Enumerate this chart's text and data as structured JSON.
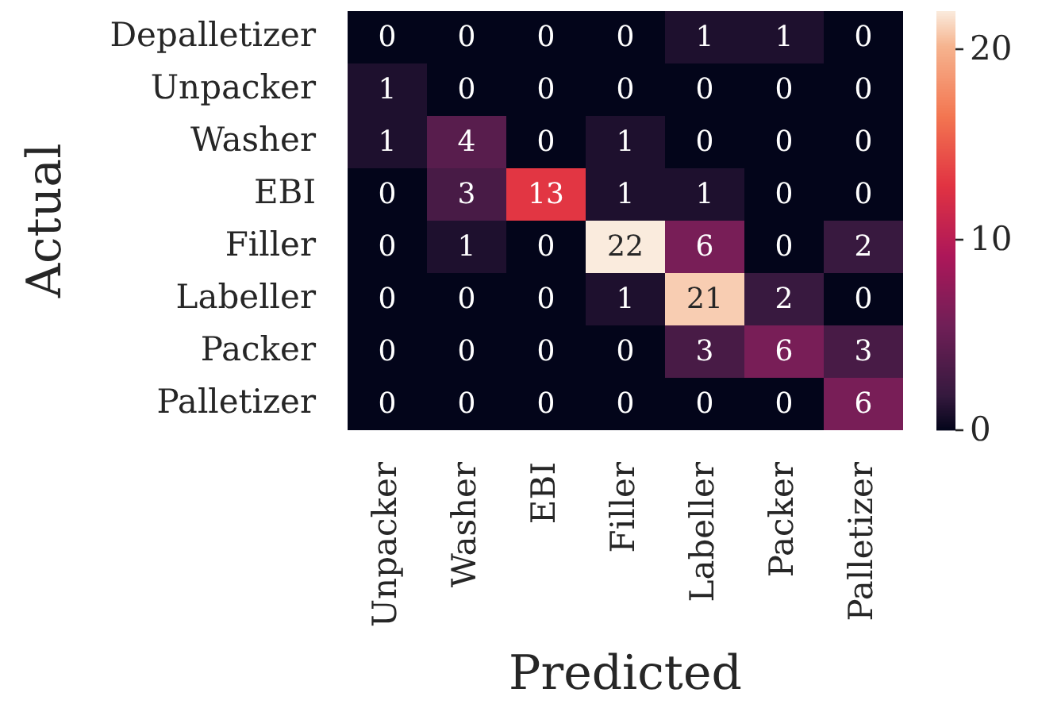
{
  "chart_data": {
    "type": "heatmap",
    "xlabel": "Predicted",
    "ylabel": "Actual",
    "categories": [
      "Unpacker",
      "Washer",
      "EBI",
      "Filler",
      "Labeller",
      "Packer",
      "Palletizer"
    ],
    "y_categories": [
      "Depalletizer",
      "Unpacker",
      "Washer",
      "EBI",
      "Filler",
      "Labeller",
      "Packer",
      "Palletizer"
    ],
    "cells": [
      [
        0,
        0,
        0,
        0,
        1,
        1,
        0
      ],
      [
        1,
        0,
        0,
        0,
        0,
        0,
        0
      ],
      [
        1,
        4,
        0,
        1,
        0,
        0,
        0
      ],
      [
        0,
        3,
        13,
        1,
        1,
        0,
        0
      ],
      [
        0,
        1,
        0,
        22,
        6,
        0,
        2
      ],
      [
        0,
        0,
        0,
        1,
        21,
        2,
        0
      ],
      [
        0,
        0,
        0,
        0,
        3,
        6,
        3
      ],
      [
        0,
        0,
        0,
        0,
        0,
        0,
        6
      ]
    ],
    "clim": [
      0,
      22
    ],
    "cticks": [
      0,
      10,
      20
    ],
    "data_labels": true
  }
}
